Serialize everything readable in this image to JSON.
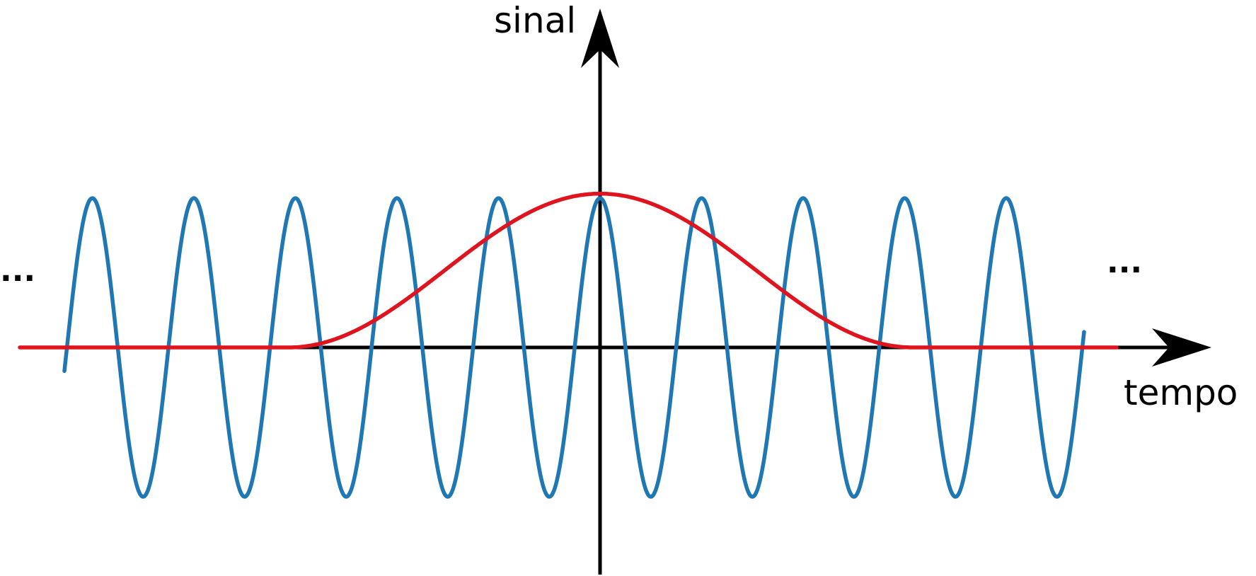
{
  "labels": {
    "y_axis": "sinal",
    "x_axis": "tempo",
    "ellipsis_left": "...",
    "ellipsis_right": "..."
  },
  "colors": {
    "axis": "#000000",
    "carrier_wave": "#1f77b4",
    "envelope": "#e0141e",
    "background": "#ffffff"
  },
  "waves": {
    "carrier": {
      "name": "",
      "shape": "cosine",
      "cycles_visible": 10.5,
      "amplitude": 1.0,
      "peak_at_origin": true
    },
    "envelope": {
      "name": "",
      "shape": "bell",
      "amplitude": 1.03,
      "baseline": 0
    }
  }
}
